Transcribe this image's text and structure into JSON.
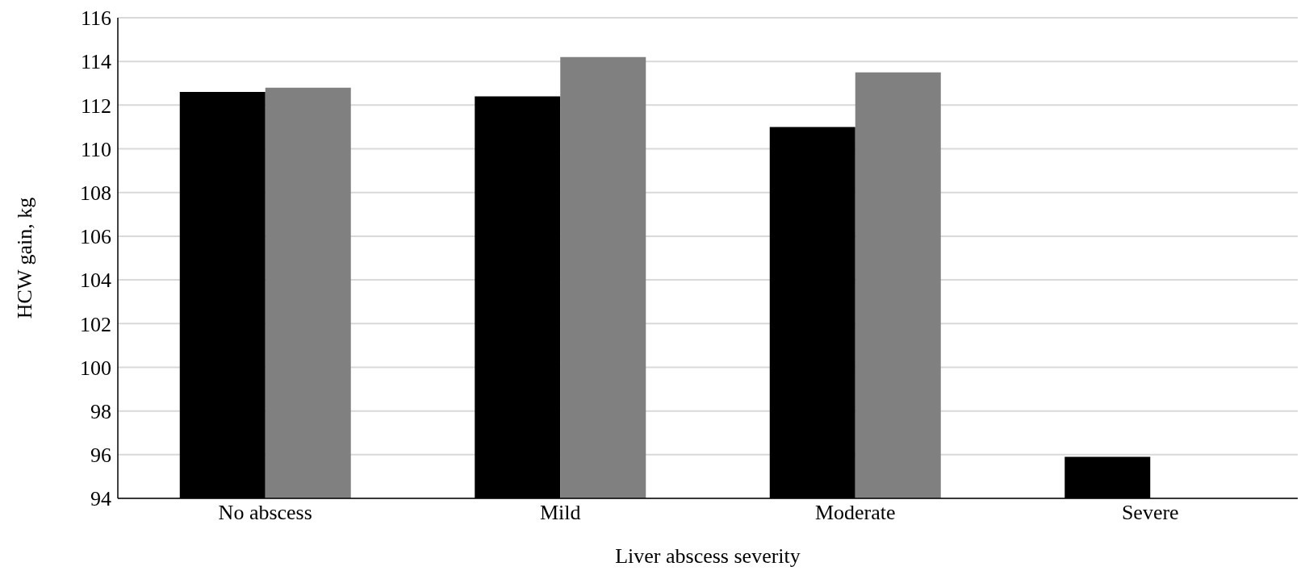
{
  "chart_data": {
    "type": "bar",
    "xlabel": "Liver abscess severity",
    "ylabel": "HCW gain, kg",
    "categories": [
      "No abscess",
      "Mild",
      "Moderate",
      "Severe"
    ],
    "series": [
      {
        "color": "#000000",
        "values": [
          112.6,
          112.4,
          111.0,
          95.9
        ]
      },
      {
        "color": "#808080",
        "values": [
          112.8,
          114.2,
          113.5,
          null
        ]
      }
    ],
    "ylim": [
      94,
      116
    ],
    "yticks": [
      94,
      96,
      98,
      100,
      102,
      104,
      106,
      108,
      110,
      112,
      114,
      116
    ],
    "grid": "y"
  }
}
